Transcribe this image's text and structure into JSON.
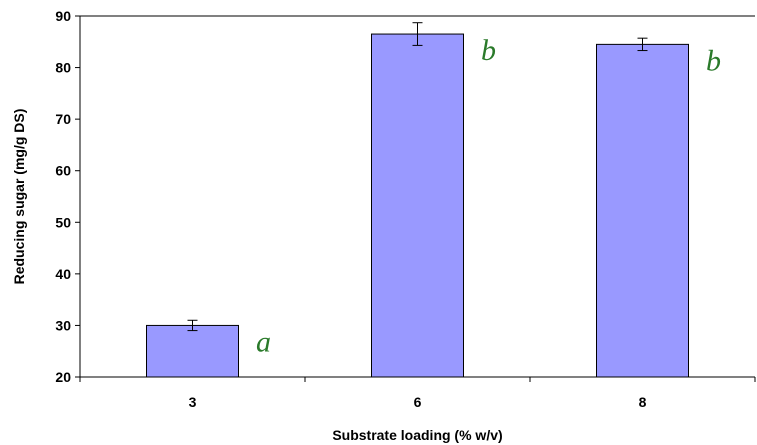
{
  "chart_data": {
    "type": "bar",
    "title": "",
    "xlabel": "Substrate loading (% w/v)",
    "ylabel": "Reducing sugar (mg/g DS)",
    "categories": [
      "3",
      "6",
      "8"
    ],
    "values": [
      30.0,
      86.5,
      84.5
    ],
    "error": [
      1.0,
      2.2,
      1.2
    ],
    "annotations": [
      "a",
      "b",
      "b"
    ],
    "ylim": [
      20,
      90
    ],
    "yticks": [
      "20",
      "30",
      "40",
      "50",
      "60",
      "70",
      "80",
      "90"
    ],
    "grid": false,
    "legend": "none",
    "colors": {
      "bar_fill": "#9999ff",
      "bar_stroke": "#000000",
      "annotation": "#2a7a2a",
      "axis": "#000000"
    }
  }
}
